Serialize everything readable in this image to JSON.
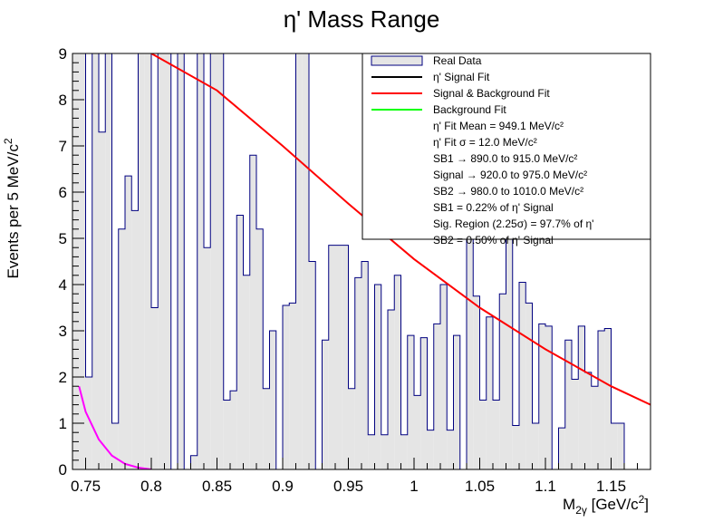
{
  "chart_data": {
    "type": "histogram",
    "title": "η' Mass Range",
    "xlabel": "M_2γ [GeV/c^2]",
    "ylabel": "Events per 5 MeV/c^2",
    "xlim": [
      0.74,
      1.18
    ],
    "ylim": [
      0,
      9
    ],
    "bin_width": 0.005,
    "x_ticks": [
      "0.75",
      "0.8",
      "0.85",
      "0.9",
      "0.95",
      "1",
      "1.05",
      "1.1",
      "1.15"
    ],
    "y_ticks": [
      "0",
      "1",
      "2",
      "3",
      "4",
      "5",
      "6",
      "7",
      "8",
      "9"
    ],
    "bins_start": 0.74,
    "counts": [
      9,
      9,
      2,
      9,
      7.3,
      9,
      1,
      5.2,
      6.35,
      5.6,
      9,
      9,
      3.5,
      9,
      9,
      0,
      9,
      0,
      0.3,
      9,
      4.8,
      9,
      9,
      1.5,
      1.7,
      5.5,
      4.2,
      6.8,
      5.2,
      1.75,
      3,
      0,
      3.55,
      3.6,
      9,
      9,
      4.5,
      0,
      2.8,
      4.85,
      4.85,
      4.85,
      1.75,
      4.15,
      4.5,
      0.75,
      4,
      0.75,
      3.45,
      4.2,
      0.75,
      2.9,
      1.6,
      2.85,
      0.85,
      3.15,
      4,
      0.85,
      2.9,
      0,
      9,
      3.75,
      1.5,
      3.3,
      1.5,
      3.8,
      9,
      0.95,
      4.05,
      3.6,
      1,
      3.15,
      3.1,
      0,
      0.9,
      2.8,
      1.95,
      3.1,
      2.1,
      1.8,
      3,
      3.05,
      1,
      1
    ],
    "series": [
      {
        "name": "Real Data",
        "style": "filled-histogram",
        "fill": "#e5e5e5",
        "line": "#000080"
      },
      {
        "name": "η' Signal Fit",
        "color": "#000000"
      },
      {
        "name": "Signal & Background Fit",
        "color": "#ff0000",
        "x": [
          0.8,
          0.85,
          0.9,
          0.95,
          1.0,
          1.05,
          1.1,
          1.15,
          1.18
        ],
        "y": [
          9.0,
          8.2,
          7.0,
          5.75,
          4.55,
          3.5,
          2.6,
          1.8,
          1.4
        ]
      },
      {
        "name": "Background Fit",
        "color": "#00ff00"
      },
      {
        "name": "",
        "color": "#ff00ff",
        "x": [
          0.745,
          0.75,
          0.76,
          0.77,
          0.78,
          0.79,
          0.8
        ],
        "y": [
          1.8,
          1.25,
          0.65,
          0.3,
          0.12,
          0.04,
          0.0
        ]
      }
    ],
    "legend_notes": [
      "η' Fit Mean = 949.1 MeV/c²",
      "η' Fit σ = 12.0 MeV/c²",
      "SB1 → 890.0 to 915.0 MeV/c²",
      "Signal → 920.0 to 975.0 MeV/c²",
      "SB2 → 980.0 to 1010.0 MeV/c²",
      "SB1 = 0.22% of η' Signal",
      "Sig. Region (2.25σ) = 97.7% of η'",
      "SB2 = 0.50% of η' Signal"
    ],
    "legend_position": "top-right",
    "grid": false
  }
}
